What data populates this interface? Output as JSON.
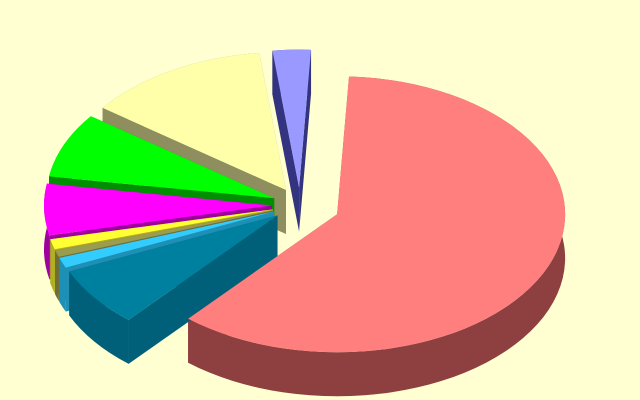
{
  "background_color": "#FFFFD2",
  "chart_data": {
    "type": "pie",
    "style": "3d-exploded",
    "title": "",
    "legend": "none",
    "data_labels": "none",
    "slices": [
      {
        "value": 60.5,
        "color": "#FF7F7F",
        "side_color": "#8E3F3F"
      },
      {
        "value": 7.0,
        "color": "#00809F",
        "side_color": "#00607A"
      },
      {
        "value": 1.2,
        "color": "#33CCFF",
        "side_color": "#1E8FB5"
      },
      {
        "value": 0.8,
        "color": "#9C9C4E",
        "side_color": "#6E6E36"
      },
      {
        "value": 1.2,
        "color": "#FFFF33",
        "side_color": "#B0B020"
      },
      {
        "value": 6.0,
        "color": "#FF00FF",
        "side_color": "#9E009E"
      },
      {
        "value": 7.6,
        "color": "#00FF00",
        "side_color": "#008F00"
      },
      {
        "value": 13.0,
        "color": "#FFFFAA",
        "side_color": "#8E8E5E"
      },
      {
        "value": 2.7,
        "color": "#9999FF",
        "side_color": "#33337F"
      }
    ]
  }
}
